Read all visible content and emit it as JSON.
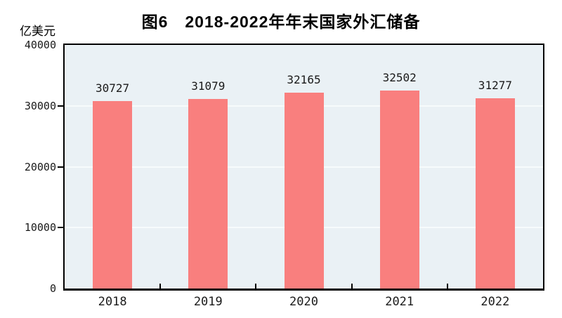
{
  "chart_data": {
    "type": "bar",
    "title": "图6　2018-2022年年末国家外汇储备",
    "unit_label": "亿美元",
    "categories": [
      "2018",
      "2019",
      "2020",
      "2021",
      "2022"
    ],
    "values": [
      30727,
      31079,
      32165,
      32502,
      31277
    ],
    "data_labels": [
      "30727",
      "31079",
      "32165",
      "32502",
      "31277"
    ],
    "xlabel": "",
    "ylabel": "亿美元",
    "ylim": [
      0,
      40000
    ],
    "y_ticks": [
      0,
      10000,
      20000,
      30000,
      40000
    ],
    "y_tick_labels": [
      "0",
      "10000",
      "20000",
      "30000",
      "40000"
    ],
    "legend_position": "none",
    "grid": "horizontal-major",
    "colors": {
      "bar_fill": "#F97F7E",
      "plot_background": "#EAF1F5",
      "gridline": "#F7FBFC",
      "axis_line": "#000000",
      "text": "#000000",
      "page_background": "#FFFFFF"
    }
  }
}
